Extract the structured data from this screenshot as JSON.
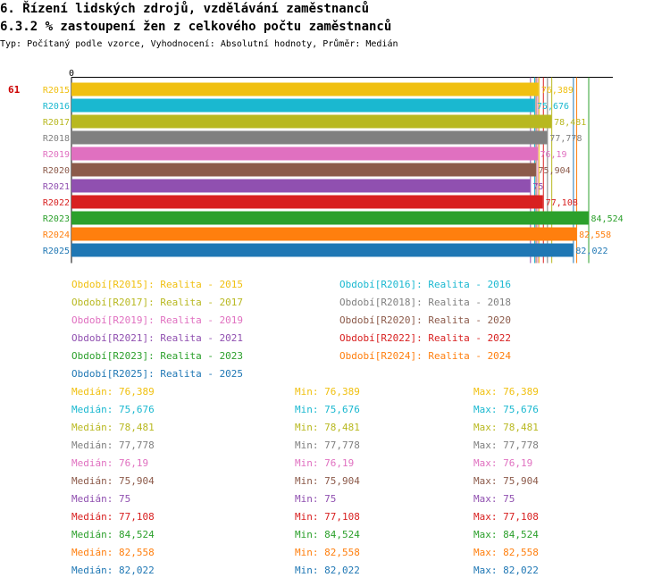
{
  "header": {
    "title": "6. Řízení lidských zdrojů, vzdělávání zaměstnanců",
    "subtitle": "6.3.2 % zastoupení žen z celkového počtu zaměstnanců",
    "meta": "Typ: Počítaný podle vzorce, Vyhodnocení: Absolutní hodnoty, Průměr: Medián"
  },
  "chart_data": {
    "type": "bar",
    "orientation": "horizontal",
    "title": "6.3.2 % zastoupení žen z celkového počtu zaměstnanců",
    "xlim": [
      0,
      90
    ],
    "zero_label": "0",
    "highlight_label": "61",
    "categories": [
      "R2015",
      "R2016",
      "R2017",
      "R2018",
      "R2019",
      "R2020",
      "R2021",
      "R2022",
      "R2023",
      "R2024",
      "R2025"
    ],
    "values": [
      76.389,
      75.676,
      78.481,
      77.778,
      76.19,
      75.904,
      75,
      77.108,
      84.524,
      82.558,
      82.022
    ],
    "value_labels": [
      "76,389",
      "75,676",
      "78,481",
      "77,778",
      "76,19",
      "75,904",
      "75",
      "77,108",
      "84,524",
      "82,558",
      "82,022"
    ],
    "colors": [
      "#f0c010",
      "#1ab8d0",
      "#b8b820",
      "#808080",
      "#e070c0",
      "#8c5a4a",
      "#9050b0",
      "#d82020",
      "#2ca02c",
      "#ff7f0e",
      "#1f77b4"
    ],
    "legend": [
      {
        "text": "Období[R2015]: Realita - 2015",
        "color": "#f0c010"
      },
      {
        "text": "Období[R2016]: Realita - 2016",
        "color": "#1ab8d0"
      },
      {
        "text": "Období[R2017]: Realita - 2017",
        "color": "#b8b820"
      },
      {
        "text": "Období[R2018]: Realita - 2018",
        "color": "#808080"
      },
      {
        "text": "Období[R2019]: Realita - 2019",
        "color": "#e070c0"
      },
      {
        "text": "Období[R2020]: Realita - 2020",
        "color": "#8c5a4a"
      },
      {
        "text": "Období[R2021]: Realita - 2021",
        "color": "#9050b0"
      },
      {
        "text": "Období[R2022]: Realita - 2022",
        "color": "#d82020"
      },
      {
        "text": "Období[R2023]: Realita - 2023",
        "color": "#2ca02c"
      },
      {
        "text": "Období[R2024]: Realita - 2024",
        "color": "#ff7f0e"
      },
      {
        "text": "Období[R2025]: Realita - 2025",
        "color": "#1f77b4"
      }
    ],
    "stats": [
      {
        "median": "Medián: 76,389",
        "min": "Min: 76,389",
        "max": "Max: 76,389",
        "color": "#f0c010"
      },
      {
        "median": "Medián: 75,676",
        "min": "Min: 75,676",
        "max": "Max: 75,676",
        "color": "#1ab8d0"
      },
      {
        "median": "Medián: 78,481",
        "min": "Min: 78,481",
        "max": "Max: 78,481",
        "color": "#b8b820"
      },
      {
        "median": "Medián: 77,778",
        "min": "Min: 77,778",
        "max": "Max: 77,778",
        "color": "#808080"
      },
      {
        "median": "Medián: 76,19",
        "min": "Min: 76,19",
        "max": "Max: 76,19",
        "color": "#e070c0"
      },
      {
        "median": "Medián: 75,904",
        "min": "Min: 75,904",
        "max": "Max: 75,904",
        "color": "#8c5a4a"
      },
      {
        "median": "Medián: 75",
        "min": "Min: 75",
        "max": "Max: 75",
        "color": "#9050b0"
      },
      {
        "median": "Medián: 77,108",
        "min": "Min: 77,108",
        "max": "Max: 77,108",
        "color": "#d82020"
      },
      {
        "median": "Medián: 84,524",
        "min": "Min: 84,524",
        "max": "Max: 84,524",
        "color": "#2ca02c"
      },
      {
        "median": "Medián: 82,558",
        "min": "Min: 82,558",
        "max": "Max: 82,558",
        "color": "#ff7f0e"
      },
      {
        "median": "Medián: 82,022",
        "min": "Min: 82,022",
        "max": "Max: 82,022",
        "color": "#1f77b4"
      }
    ]
  }
}
